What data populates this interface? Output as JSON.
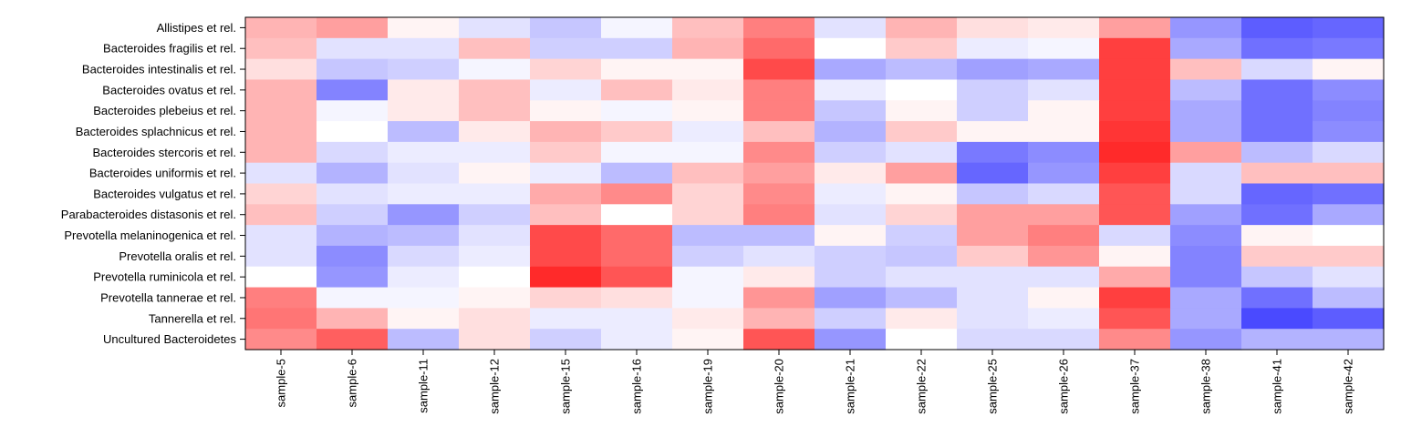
{
  "chart_data": {
    "type": "heatmap",
    "title": "",
    "xlabel": "",
    "ylabel": "",
    "legend": "none",
    "value_range": [
      -1,
      1
    ],
    "colors": {
      "low": "#4040ff",
      "mid": "#ffffff",
      "high": "#ff2a2a"
    },
    "rows": [
      "Allistipes et rel.",
      "Bacteroides fragilis et rel.",
      "Bacteroides intestinalis et rel.",
      "Bacteroides ovatus et rel.",
      "Bacteroides plebeius et rel.",
      "Bacteroides splachnicus et rel.",
      "Bacteroides stercoris et rel.",
      "Bacteroides uniformis et rel.",
      "Bacteroides vulgatus et rel.",
      "Parabacteroides distasonis et rel.",
      "Prevotella melaninogenica et rel.",
      "Prevotella oralis et rel.",
      "Prevotella ruminicola et rel.",
      "Prevotella tannerae et rel.",
      "Tannerella et rel.",
      "Uncultured Bacteroidetes"
    ],
    "columns": [
      "sample-5",
      "sample-6",
      "sample-11",
      "sample-12",
      "sample-15",
      "sample-16",
      "sample-19",
      "sample-20",
      "sample-21",
      "sample-22",
      "sample-25",
      "sample-26",
      "sample-37",
      "sample-38",
      "sample-41",
      "sample-42"
    ],
    "values": [
      [
        0.35,
        0.45,
        0.05,
        -0.15,
        -0.3,
        -0.05,
        0.3,
        0.6,
        -0.15,
        0.35,
        0.15,
        0.1,
        0.45,
        -0.55,
        -0.85,
        -0.8
      ],
      [
        0.3,
        -0.15,
        -0.15,
        0.3,
        -0.25,
        -0.25,
        0.35,
        0.7,
        0.0,
        0.25,
        -0.1,
        -0.05,
        0.9,
        -0.45,
        -0.75,
        -0.7
      ],
      [
        0.15,
        -0.3,
        -0.25,
        -0.05,
        0.2,
        0.05,
        0.05,
        0.85,
        -0.45,
        -0.35,
        -0.5,
        -0.45,
        0.9,
        0.3,
        -0.2,
        0.05
      ],
      [
        0.35,
        -0.65,
        0.1,
        0.3,
        -0.1,
        0.3,
        0.1,
        0.6,
        -0.1,
        0.0,
        -0.25,
        -0.15,
        0.9,
        -0.35,
        -0.75,
        -0.6
      ],
      [
        0.35,
        -0.05,
        0.1,
        0.3,
        0.05,
        -0.05,
        0.05,
        0.6,
        -0.3,
        0.05,
        -0.25,
        0.05,
        0.9,
        -0.45,
        -0.75,
        -0.65
      ],
      [
        0.35,
        0.0,
        -0.35,
        0.1,
        0.35,
        0.25,
        -0.1,
        0.3,
        -0.4,
        0.25,
        0.05,
        0.05,
        0.95,
        -0.45,
        -0.75,
        -0.6
      ],
      [
        0.35,
        -0.2,
        -0.1,
        -0.1,
        0.25,
        -0.05,
        -0.05,
        0.55,
        -0.25,
        -0.15,
        -0.7,
        -0.6,
        1.0,
        0.45,
        -0.35,
        -0.2
      ],
      [
        -0.15,
        -0.4,
        -0.15,
        0.05,
        -0.1,
        -0.35,
        0.3,
        0.45,
        0.1,
        0.45,
        -0.8,
        -0.55,
        0.9,
        -0.2,
        0.3,
        0.3
      ],
      [
        0.2,
        -0.15,
        -0.1,
        -0.1,
        0.4,
        0.55,
        0.2,
        0.55,
        -0.1,
        0.05,
        -0.3,
        -0.2,
        0.8,
        -0.2,
        -0.8,
        -0.75
      ],
      [
        0.3,
        -0.25,
        -0.55,
        -0.25,
        0.3,
        0.0,
        0.2,
        0.6,
        -0.15,
        0.2,
        0.45,
        0.45,
        0.8,
        -0.5,
        -0.75,
        -0.45
      ],
      [
        -0.15,
        -0.4,
        -0.35,
        -0.15,
        0.85,
        0.7,
        -0.35,
        -0.35,
        0.05,
        -0.25,
        0.45,
        0.6,
        -0.2,
        -0.6,
        0.05,
        0.0
      ],
      [
        -0.15,
        -0.6,
        -0.2,
        -0.1,
        0.85,
        0.7,
        -0.25,
        -0.15,
        -0.25,
        -0.3,
        0.25,
        0.5,
        0.05,
        -0.65,
        0.25,
        0.25
      ],
      [
        0.0,
        -0.55,
        -0.1,
        0.0,
        1.0,
        0.8,
        -0.05,
        0.1,
        -0.25,
        -0.15,
        -0.15,
        -0.15,
        0.4,
        -0.65,
        -0.3,
        -0.15
      ],
      [
        0.6,
        -0.05,
        -0.05,
        0.05,
        0.2,
        0.15,
        -0.05,
        0.5,
        -0.5,
        -0.35,
        -0.15,
        0.05,
        0.9,
        -0.45,
        -0.75,
        -0.35
      ],
      [
        0.65,
        0.35,
        0.05,
        0.15,
        -0.1,
        -0.1,
        0.1,
        0.35,
        -0.25,
        0.1,
        -0.15,
        -0.1,
        0.8,
        -0.45,
        -0.95,
        -0.85
      ],
      [
        0.55,
        0.75,
        -0.35,
        0.15,
        -0.25,
        -0.1,
        0.05,
        0.8,
        -0.55,
        0.0,
        -0.2,
        -0.2,
        0.55,
        -0.55,
        -0.4,
        -0.4
      ]
    ]
  }
}
